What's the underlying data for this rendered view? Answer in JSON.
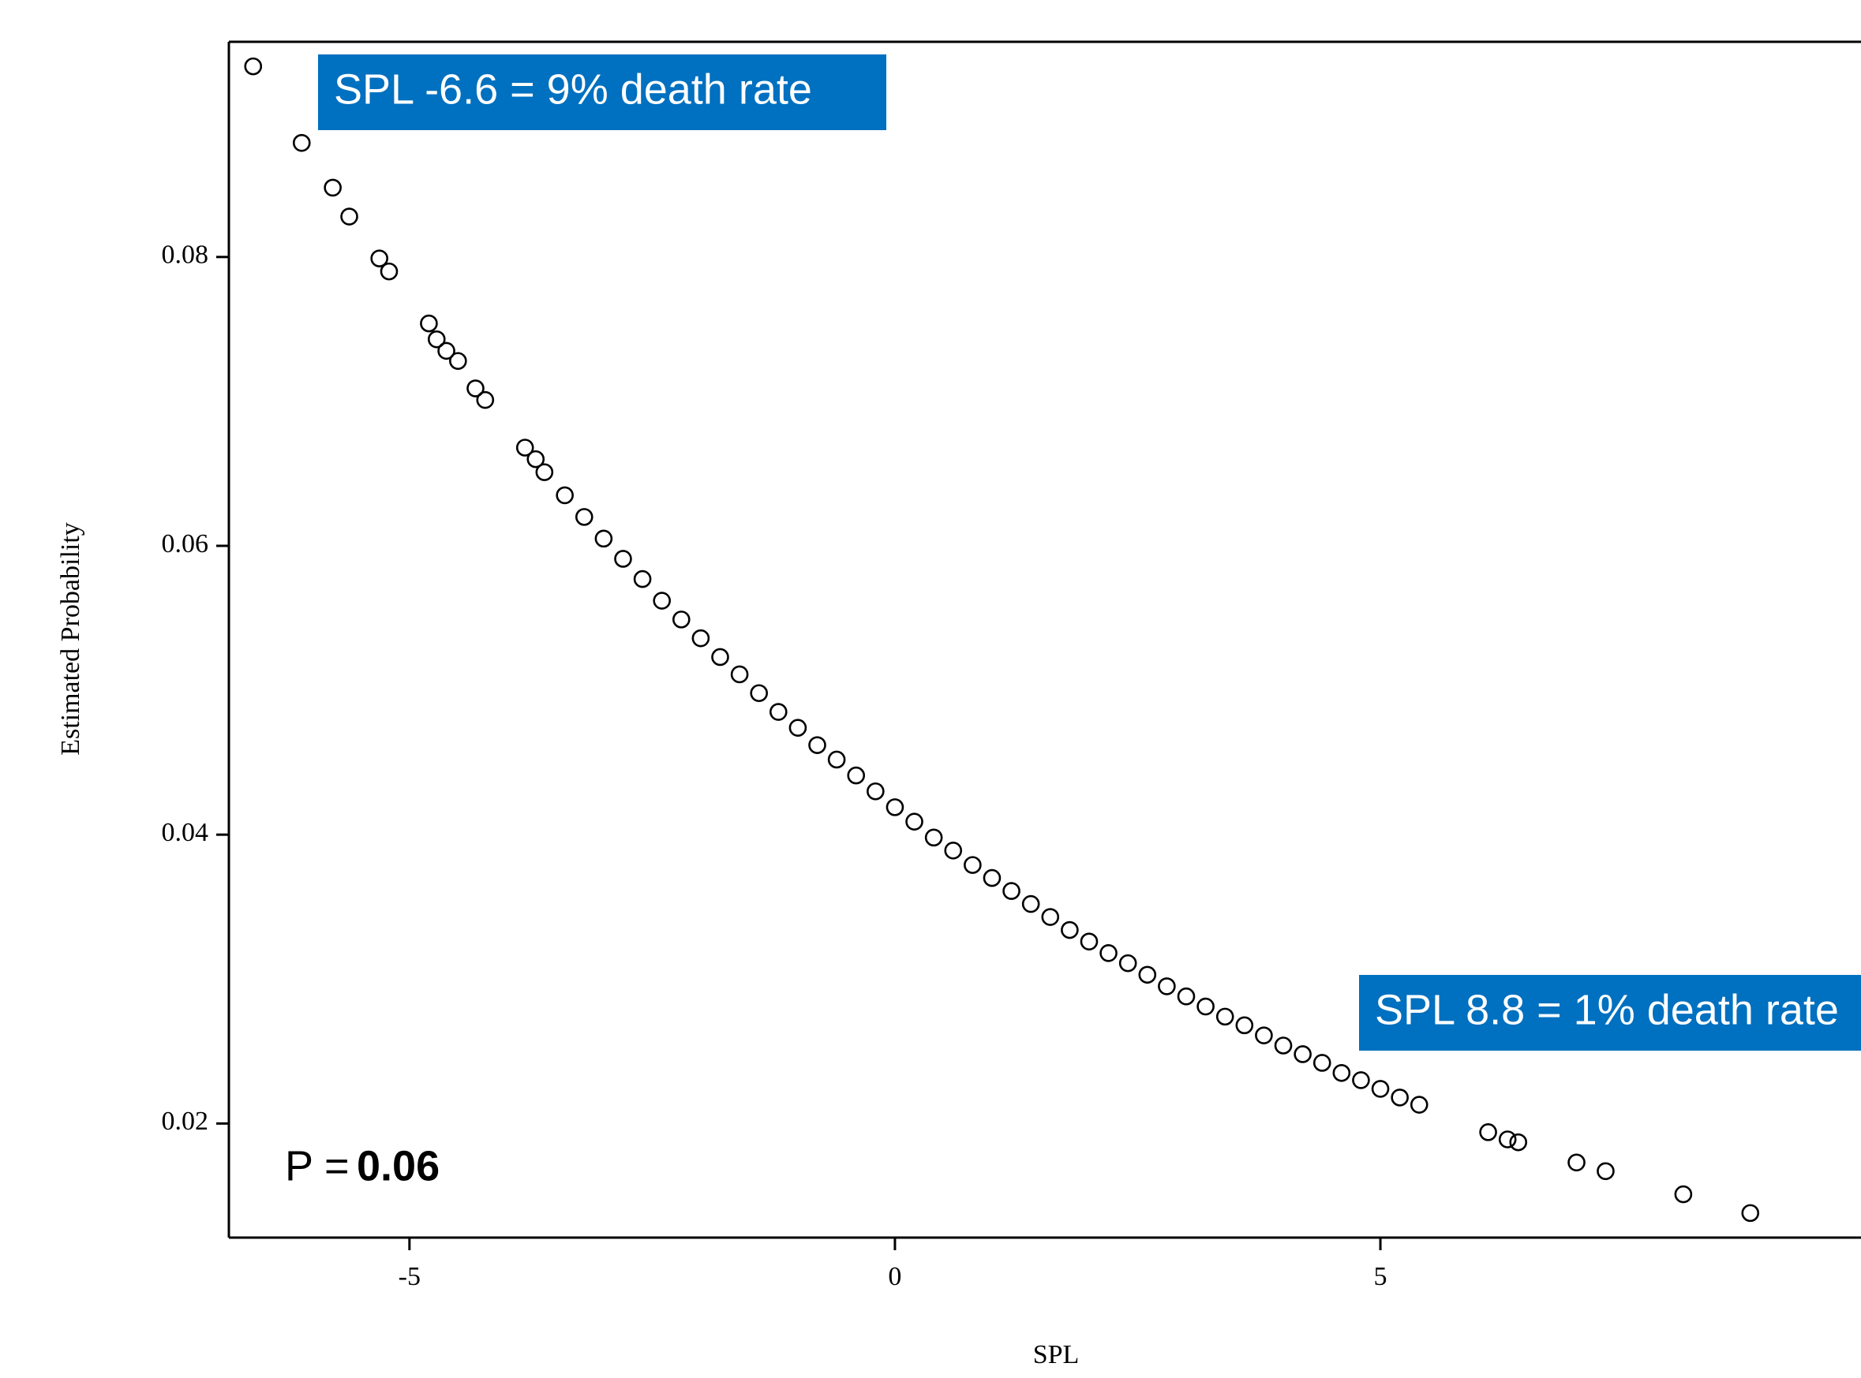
{
  "chart_data": {
    "type": "scatter",
    "xlabel": "SPL",
    "ylabel": "Estimated Probability",
    "x": [
      -6.61,
      -6.11,
      -5.79,
      -5.62,
      -5.31,
      -5.21,
      -4.8,
      -4.72,
      -4.62,
      -4.5,
      -4.32,
      -4.22,
      -3.81,
      -3.7,
      -3.61,
      -3.4,
      -3.2,
      -3.0,
      -2.8,
      -2.6,
      -2.4,
      -2.2,
      -2.0,
      -1.8,
      -1.6,
      -1.4,
      -1.2,
      -1.0,
      -0.8,
      -0.6,
      -0.4,
      -0.2,
      0,
      0.2,
      0.4,
      0.6,
      0.8,
      1.0,
      1.2,
      1.4,
      1.6,
      1.8,
      2.0,
      2.2,
      2.4,
      2.6,
      2.8,
      3.0,
      3.2,
      3.4,
      3.6,
      3.8,
      4.0,
      4.2,
      4.4,
      4.6,
      4.8,
      5.0,
      5.2,
      5.4,
      6.11,
      6.31,
      6.42,
      7.02,
      7.32,
      8.12,
      8.81
    ],
    "values": [
      0.0932,
      0.0879,
      0.0848,
      0.0828,
      0.0799,
      0.079,
      0.0754,
      0.0743,
      0.0735,
      0.0728,
      0.0709,
      0.0701,
      0.0668,
      0.066,
      0.0651,
      0.0635,
      0.062,
      0.0605,
      0.0591,
      0.0577,
      0.0562,
      0.0549,
      0.0536,
      0.0523,
      0.0511,
      0.0498,
      0.0485,
      0.0474,
      0.0462,
      0.0452,
      0.0441,
      0.043,
      0.0419,
      0.0409,
      0.0398,
      0.0389,
      0.0379,
      0.037,
      0.0361,
      0.0352,
      0.0343,
      0.0334,
      0.0326,
      0.0318,
      0.0311,
      0.0303,
      0.0295,
      0.0288,
      0.0281,
      0.0274,
      0.0268,
      0.0261,
      0.0254,
      0.0248,
      0.0242,
      0.0235,
      0.023,
      0.0224,
      0.0218,
      0.0213,
      0.0194,
      0.0189,
      0.0187,
      0.0173,
      0.0167,
      0.0151,
      0.0138
    ],
    "color": "#000000",
    "xlim": [
      -6.86,
      9.95
    ],
    "xticks": [
      -5,
      0,
      5
    ],
    "ylim": [
      0.0121,
      0.0949
    ],
    "yticks": [
      0.02,
      0.04,
      0.06,
      0.08
    ],
    "annotations": [
      "SPL -6.6 = 9% death rate",
      "SPL 8.8 = 1% death rate"
    ],
    "annotation_color": "#0070c0",
    "p_label": "P =",
    "p_value": "0.06"
  }
}
